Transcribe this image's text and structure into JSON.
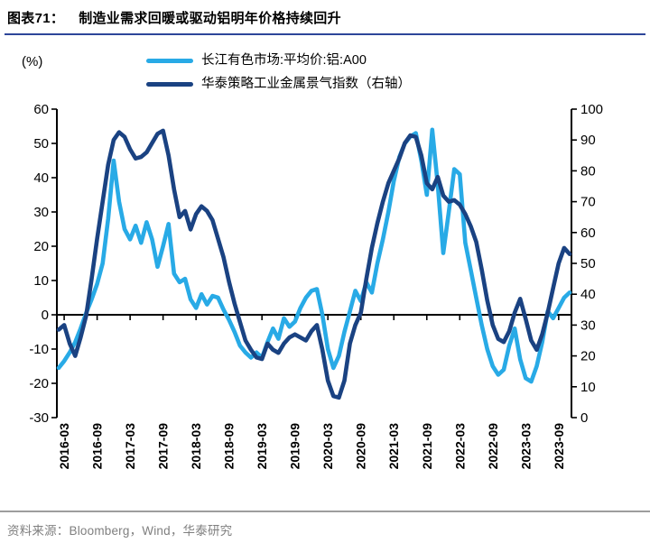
{
  "header": {
    "label": "图表71：",
    "title": "制造业需求回暖或驱动铝明年价格持续回升"
  },
  "footer": {
    "source": "资料来源：Bloomberg，Wind，华泰研究"
  },
  "chart_data": {
    "type": "line",
    "unit_label": "(%)",
    "legend_position": "top",
    "grid": false,
    "x_monthly_start": "2016-02",
    "x_monthly_end": "2023-11",
    "x_tick_labels": [
      "2016-03",
      "2016-09",
      "2017-03",
      "2017-09",
      "2018-03",
      "2018-09",
      "2019-03",
      "2019-09",
      "2020-03",
      "2020-09",
      "2021-03",
      "2021-09",
      "2022-03",
      "2022-09",
      "2023-03",
      "2023-09"
    ],
    "x_first_tick_index": 1,
    "x_tick_step": 6,
    "left_axis": {
      "min": -30,
      "max": 60,
      "ticks": [
        60,
        50,
        40,
        30,
        20,
        10,
        0,
        -10,
        -20,
        -30
      ]
    },
    "right_axis": {
      "min": 0,
      "max": 100,
      "ticks": [
        100,
        90,
        80,
        70,
        60,
        50,
        40,
        30,
        20,
        10,
        0
      ]
    },
    "series": [
      {
        "name": "长江有色市场:平均价:铝:A00",
        "axis": "left",
        "color": "#28AAE6",
        "values": [
          -15.5,
          -13.5,
          -11,
          -8,
          -4,
          0.5,
          4.5,
          9,
          15,
          28,
          45,
          33,
          25,
          22,
          26,
          21,
          27,
          22,
          14,
          20,
          26.5,
          12,
          9.5,
          10.5,
          4.5,
          2,
          6,
          3,
          5.5,
          5,
          1.5,
          -1.5,
          -5,
          -9,
          -11,
          -12.5,
          -11,
          -12.5,
          -8,
          -4,
          -7,
          -1,
          -3.5,
          -2,
          2,
          5,
          7,
          7.5,
          0,
          -10,
          -15.5,
          -12,
          -5,
          1,
          7,
          4,
          9.5,
          6.5,
          15,
          22,
          30,
          39,
          46,
          50,
          52,
          53,
          45,
          35,
          54,
          38,
          18,
          30,
          42.5,
          41,
          21,
          13,
          5,
          -3,
          -10,
          -15,
          -17.5,
          -16,
          -9,
          -4,
          -13,
          -18.5,
          -19.5,
          -15,
          -8,
          1,
          -1,
          2,
          5,
          6.5
        ]
      },
      {
        "name": "华泰策略工业金属景气指数（右轴）",
        "axis": "right",
        "color": "#1A4282",
        "values": [
          28.5,
          30,
          24,
          20,
          26,
          33,
          45,
          58,
          70,
          82,
          90,
          92.5,
          91,
          87,
          84,
          84.5,
          86,
          89,
          92,
          93,
          85,
          74,
          65,
          67,
          61,
          66,
          68.5,
          67,
          64,
          58,
          52,
          44,
          37,
          31,
          25,
          22,
          19.5,
          19,
          24,
          22,
          21,
          24,
          26,
          27,
          26,
          25,
          28,
          30,
          22,
          12,
          7,
          6.5,
          12,
          24,
          30,
          34,
          45,
          55,
          63,
          70,
          76,
          80,
          84,
          89,
          91.5,
          91,
          85,
          76,
          74,
          78,
          72,
          70,
          70.5,
          69,
          66,
          62,
          57,
          48,
          38,
          30,
          25.5,
          24.5,
          28,
          34,
          38.5,
          32,
          25,
          22,
          27,
          34,
          42,
          50,
          55,
          53
        ]
      }
    ]
  }
}
